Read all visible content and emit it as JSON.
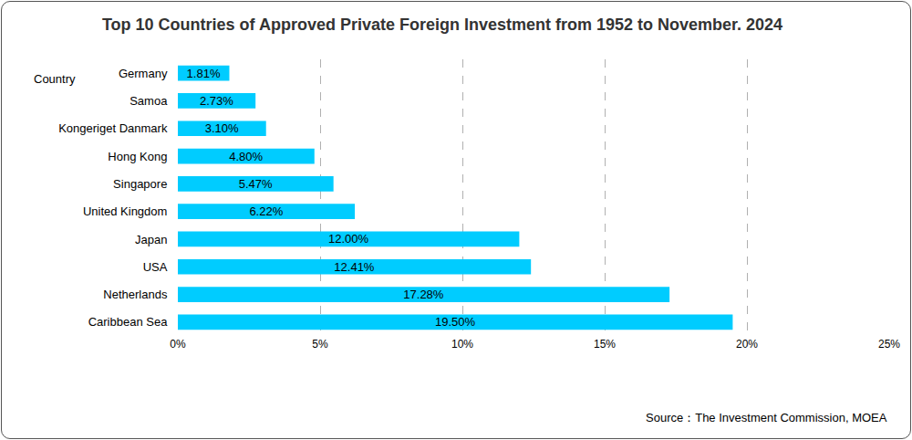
{
  "chart_data": {
    "type": "bar",
    "orientation": "horizontal",
    "title": "Top 10 Countries of Approved Private Foreign Investment from 1952 to November. 2024",
    "y_label": "Country",
    "annotations": [
      "Source：The Investment Commission, MOEA"
    ],
    "categories": [
      "Germany",
      "Samoa",
      "Kongeriget Danmark",
      "Hong Kong",
      "Singapore",
      "United Kingdom",
      "Japan",
      "USA",
      "Netherlands",
      "Caribbean Sea"
    ],
    "values": [
      1.81,
      2.73,
      3.1,
      4.8,
      5.47,
      6.22,
      12.0,
      12.41,
      17.28,
      19.5
    ],
    "value_labels": [
      "1.81%",
      "2.73%",
      "3.10%",
      "4.80%",
      "5.47%",
      "6.22%",
      "12.00%",
      "12.41%",
      "17.28%",
      "19.50%"
    ],
    "data_labels": true,
    "color": "#00ccff",
    "xlim": [
      0,
      25
    ],
    "xticks": [
      {
        "value": 0,
        "label": "0%"
      },
      {
        "value": 5,
        "label": "5%"
      },
      {
        "value": 10,
        "label": "10%"
      },
      {
        "value": 15,
        "label": "15%"
      },
      {
        "value": 20,
        "label": "20%"
      },
      {
        "value": 25,
        "label": "25%"
      }
    ],
    "grid": true
  }
}
